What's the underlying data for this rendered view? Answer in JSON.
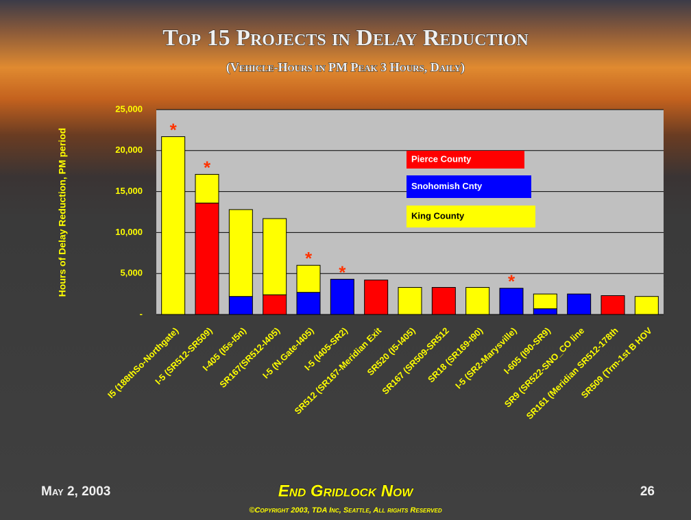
{
  "chart_data": {
    "type": "stacked_bar",
    "title": "Top 15 Projects in Delay Reduction",
    "subtitle": "(Vehicle-Hours in PM Peak 3 Hours, Daily)",
    "y_label": "Hours of Delay Reduction, PM period",
    "categories": [
      "I5 (188thSo-Northgate)",
      "I-5 (SR512-SR509)",
      "I-405 (I5s-I5n)",
      "SR167(SR512-I405)",
      "I-5 (N.Gate-I405)",
      "I-5 (I405-SR2)",
      "SR512 (SR167-Meridian Exit",
      "SR520 (I5-I405)",
      "SR167 (SR509-SR512",
      "SR18 (SR169-I90)",
      "I-5 (SR2-Marysville)",
      "I-605 (I90-SR9)",
      "SR9 (SR522-SNO_CO line",
      "SR161 (Meridian SR512-178th",
      "SR509  (Trm-1st B HOV"
    ],
    "series": [
      {
        "name": "Pierce County",
        "color": "#ff0000",
        "values": [
          0,
          13600,
          0,
          2400,
          0,
          0,
          4200,
          0,
          3300,
          0,
          0,
          0,
          0,
          2300,
          0
        ]
      },
      {
        "name": "Snohomish Cnty",
        "color": "#0000ff",
        "values": [
          0,
          0,
          2200,
          0,
          2700,
          4300,
          0,
          0,
          0,
          0,
          3200,
          700,
          2500,
          0,
          0
        ]
      },
      {
        "name": "King County",
        "color": "#ffff00",
        "values": [
          21700,
          3500,
          10600,
          9300,
          3300,
          0,
          0,
          3300,
          0,
          3300,
          0,
          1800,
          0,
          0,
          2200
        ]
      }
    ],
    "markers": [
      "*",
      "*",
      null,
      null,
      "*",
      "*",
      null,
      null,
      null,
      null,
      "*",
      null,
      null,
      null,
      null
    ],
    "ylim": [
      0,
      25000
    ],
    "yticks": [
      {
        "value": 0,
        "label": "-"
      },
      {
        "value": 5000,
        "label": "5,000"
      },
      {
        "value": 10000,
        "label": "10,000"
      },
      {
        "value": 15000,
        "label": "15,000"
      },
      {
        "value": 20000,
        "label": "20,000"
      },
      {
        "value": 25000,
        "label": "25,000"
      }
    ],
    "grid": true
  },
  "footer": {
    "date": "May 2, 2003",
    "slogan": "End Gridlock Now",
    "copyright": "©Copyright 2003, TDA Inc, Seattle, All rights Reserved",
    "page": "26"
  }
}
